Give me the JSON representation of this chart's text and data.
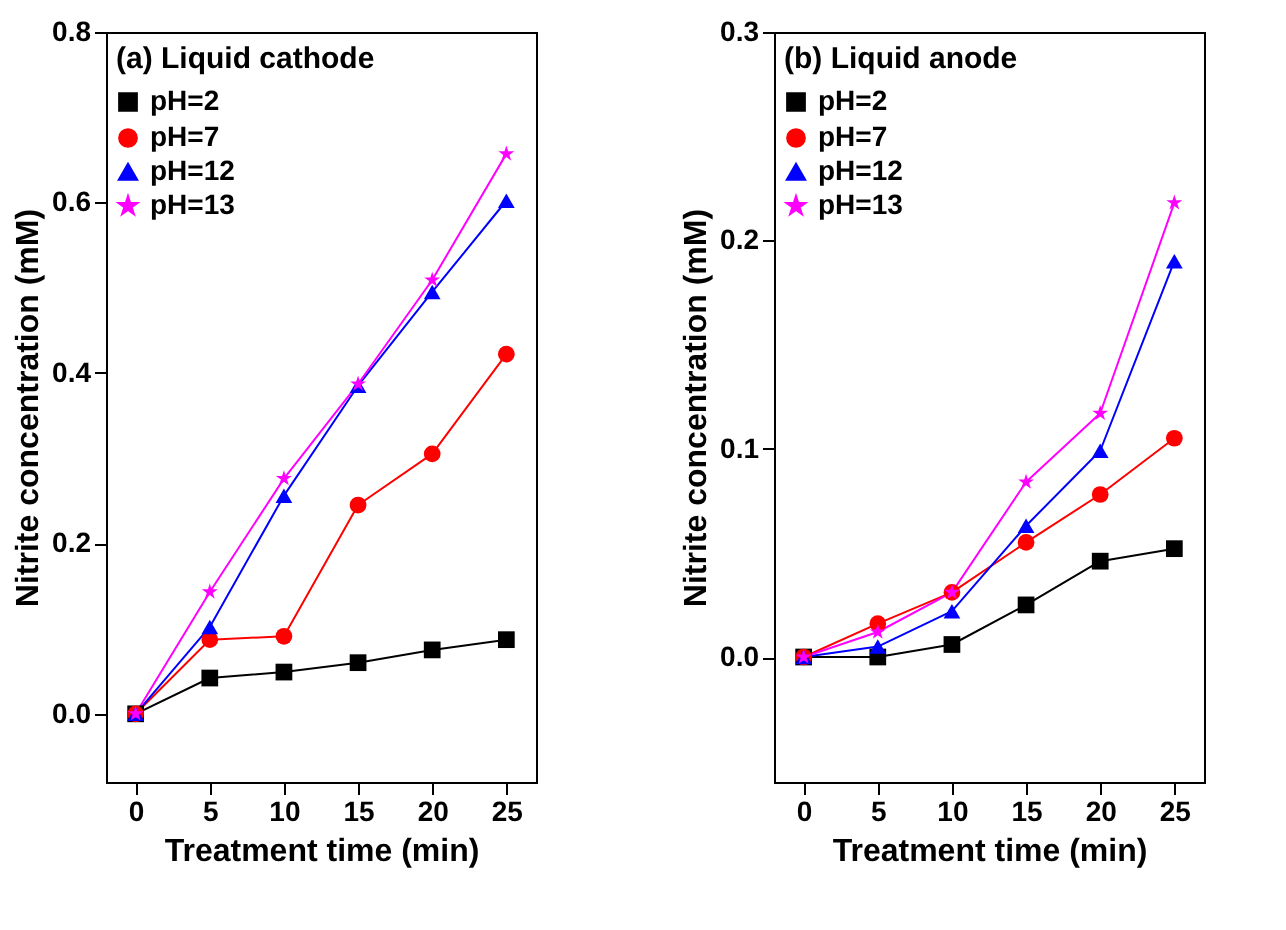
{
  "chart_data": [
    {
      "type": "line",
      "title": "(a) Liquid cathode",
      "xlabel": "Treatment time (min)",
      "ylabel": "Nitrite concentration (mM)",
      "x": [
        0,
        5,
        10,
        15,
        20,
        25
      ],
      "xlim": [
        -2,
        27
      ],
      "xticks": [
        0,
        5,
        10,
        15,
        20,
        25
      ],
      "ylim": [
        -0.08,
        0.8
      ],
      "yticks": [
        {
          "value": 0,
          "label": "0.0"
        },
        0.2,
        0.4,
        0.6,
        0.8
      ],
      "grid": false,
      "legend": "top left",
      "line_style": "solid",
      "series": [
        {
          "name": "pH=2",
          "color": "#000000",
          "marker": "square",
          "values": [
            0,
            0.042,
            0.049,
            0.06,
            0.075,
            0.087
          ]
        },
        {
          "name": "pH=7",
          "color": "#ff0000",
          "marker": "circle",
          "values": [
            0,
            0.087,
            0.091,
            0.245,
            0.305,
            0.422
          ]
        },
        {
          "name": "pH=12",
          "color": "#0000ff",
          "marker": "triangle",
          "values": [
            0,
            0.102,
            0.256,
            0.385,
            0.495,
            0.602
          ]
        },
        {
          "name": "pH=13",
          "color": "#ff00ff",
          "marker": "star",
          "values": [
            0,
            0.143,
            0.276,
            0.387,
            0.509,
            0.657
          ]
        }
      ]
    },
    {
      "type": "line",
      "title": "(b) Liquid anode",
      "xlabel": "Treatment time (min)",
      "ylabel": "Nitrite concentration (mM)",
      "x": [
        0,
        5,
        10,
        15,
        20,
        25
      ],
      "xlim": [
        -2,
        27
      ],
      "xticks": [
        0,
        5,
        10,
        15,
        20,
        25
      ],
      "ylim": [
        -0.06,
        0.3
      ],
      "yticks": [
        {
          "value": 0,
          "label": "0.0"
        },
        0.1,
        0.2,
        0.3
      ],
      "grid": false,
      "legend": "top left",
      "line_style": "solid",
      "series": [
        {
          "name": "pH=2",
          "color": "#000000",
          "marker": "square",
          "values": [
            0,
            0,
            0.006,
            0.025,
            0.046,
            0.052
          ]
        },
        {
          "name": "pH=7",
          "color": "#ff0000",
          "marker": "circle",
          "values": [
            0,
            0.016,
            0.031,
            0.055,
            0.078,
            0.105
          ]
        },
        {
          "name": "pH=12",
          "color": "#0000ff",
          "marker": "triangle",
          "values": [
            0,
            0.005,
            0.022,
            0.063,
            0.099,
            0.19
          ]
        },
        {
          "name": "pH=13",
          "color": "#ff00ff",
          "marker": "star",
          "values": [
            0,
            0.012,
            0.031,
            0.084,
            0.117,
            0.218
          ]
        }
      ]
    }
  ]
}
